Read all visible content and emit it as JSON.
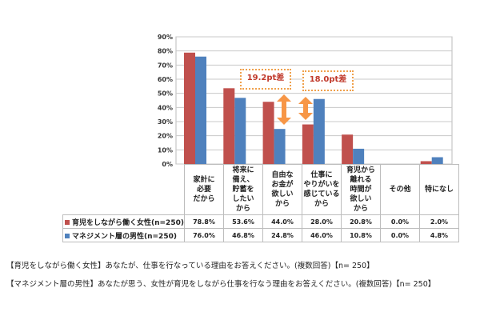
{
  "chart_data": {
    "type": "bar",
    "categories": [
      "家計に\n必要\nだから",
      "将来に\n備え、\n貯蓄を\nしたい\nから",
      "自由な\nお金が\n欲しい\nから",
      "仕事に\nやりがいを\n感じている\nから",
      "育児から\n離れる\n時間が\n欲しい\nから",
      "その他",
      "特になし"
    ],
    "series": [
      {
        "name": "育児をしながら働く女性(n=250)",
        "color": "#c0504d",
        "values": [
          78.8,
          53.6,
          44.0,
          28.0,
          20.8,
          0.0,
          2.0
        ],
        "labels": [
          "78.8%",
          "53.6%",
          "44.0%",
          "28.0%",
          "20.8%",
          "0.0%",
          "2.0%"
        ]
      },
      {
        "name": "マネジメント層の男性(n=250)",
        "color": "#4f81bd",
        "values": [
          76.0,
          46.8,
          24.8,
          46.0,
          10.8,
          0.0,
          4.8
        ],
        "labels": [
          "76.0%",
          "46.8%",
          "24.8%",
          "46.0%",
          "10.8%",
          "0.0%",
          "4.8%"
        ]
      }
    ],
    "ylim": [
      0,
      90
    ],
    "yticks": [
      "0%",
      "10%",
      "20%",
      "30%",
      "40%",
      "50%",
      "60%",
      "70%",
      "80%",
      "90%"
    ],
    "grid": true,
    "annotations": [
      "19.2pt差",
      "18.0pt差"
    ]
  },
  "captions": [
    "【育児をしながら働く女性】あなたが、仕事を行なっている理由をお答えください。(複数回答)【n= 250】",
    "【マネジメント層の男性】あなたが思う、女性が育児をしながら仕事を行なう理由をお答えください。(複数回答)【n= 250】"
  ],
  "arrow_color": "#f79646"
}
